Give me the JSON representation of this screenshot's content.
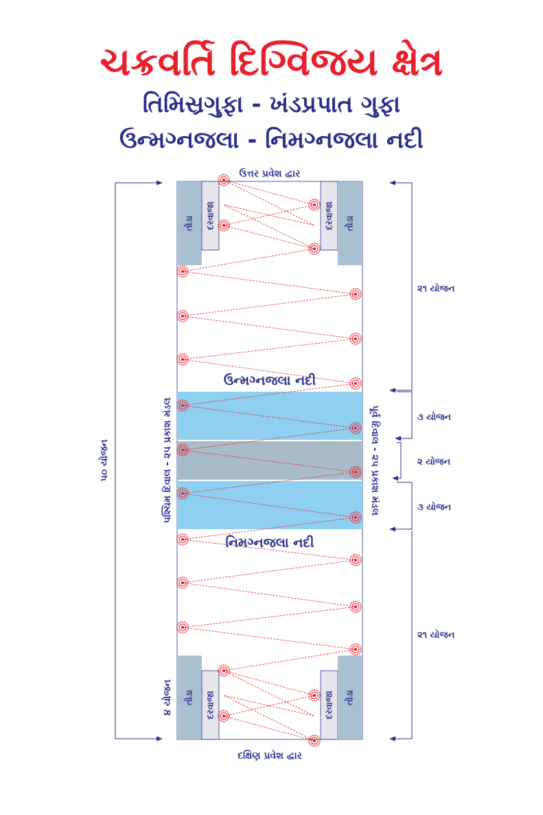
{
  "header": {
    "title": "ચક્રવર્તિ દિગ્વિજય ક્ષેત્ર",
    "subtitle_caves": "તિમિસ્રગુફા - ખંડપ્રપાત ગુફા",
    "subtitle_rivers": "ઉન્મગ્નજલા - નિમગ્નજલા નદી"
  },
  "gates": {
    "north": "ઉત્તર પ્રવેશ દ્વાર",
    "south": "દક્ષિણ પ્રવેશ દ્વાર",
    "pillar": "તોડા",
    "door": "દરવાજા"
  },
  "rivers": {
    "upper": "ઉન્મગ્નજલા નદી",
    "lower": "નિમગ્નજલા નદી"
  },
  "walls": {
    "west": "પશ્ચિમ દિવાલ - ૨૫ પ્રકાશ મંડલ",
    "east": "પૂર્વ દિવાલ - ૨૫ પ્રકાશ મંડલ"
  },
  "measurements": {
    "total": "૫૦ યોજન",
    "gate_depth": "૪ યોજન",
    "upper_section": "૨૧ યોજન",
    "upper_river": "૩ યોજન",
    "middle": "૨ યોજન",
    "lower_river": "૩ યોજન",
    "lower_section": "૨૧ યોજન"
  },
  "colors": {
    "title": "#e8202a",
    "text": "#2b2f8a",
    "river": "#8fd0f0",
    "middle_band": "#a8bcc8",
    "pillar": "#a8c0d0",
    "door": "#e6e6ea",
    "light_circle": "#e8202a"
  },
  "icons": {
    "light_circle": "light-circle-icon",
    "arrow": "arrow-icon"
  }
}
